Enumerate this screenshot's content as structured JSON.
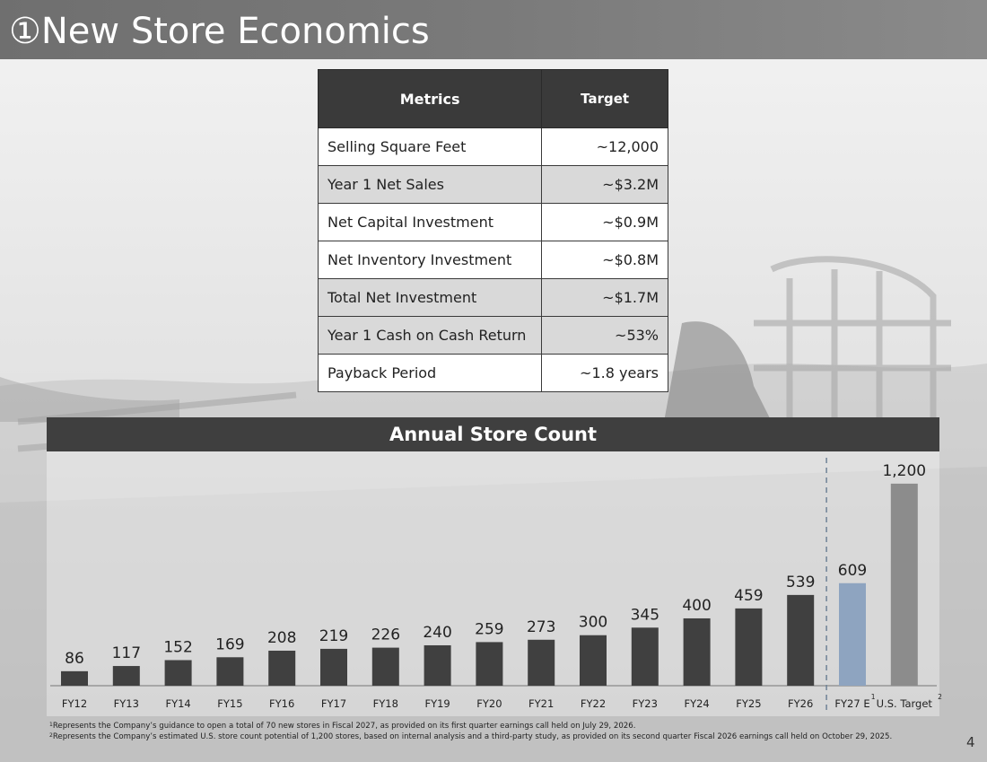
{
  "header": {
    "title": "①New Store Economics"
  },
  "metrics_table": {
    "headers": {
      "metric": "Metrics",
      "target": "Target"
    },
    "rows": [
      {
        "metric": "Selling Square Feet",
        "target": "~12,000"
      },
      {
        "metric": "Year 1 Net Sales",
        "target": "~$3.2M"
      },
      {
        "metric": "Net Capital Investment",
        "target": "~$0.9M"
      },
      {
        "metric": "Net Inventory Investment",
        "target": "~$0.8M"
      },
      {
        "metric": "Total Net Investment",
        "target": "~$1.7M"
      },
      {
        "metric": "Year 1 Cash on Cash Return",
        "target": "~53%"
      },
      {
        "metric": "Payback Period",
        "target": "~1.8 years"
      }
    ]
  },
  "chart_data": {
    "type": "bar",
    "title": "Annual Store Count",
    "categories": [
      "FY12",
      "FY13",
      "FY14",
      "FY15",
      "FY16",
      "FY17",
      "FY18",
      "FY19",
      "FY20",
      "FY21",
      "FY22",
      "FY23",
      "FY24",
      "FY25",
      "FY26",
      "FY27 E",
      "U.S. Target"
    ],
    "category_superscripts": [
      "",
      "",
      "",
      "",
      "",
      "",
      "",
      "",
      "",
      "",
      "",
      "",
      "",
      "",
      "",
      "1",
      "2"
    ],
    "values": [
      86,
      117,
      152,
      169,
      208,
      219,
      226,
      240,
      259,
      273,
      300,
      345,
      400,
      459,
      539,
      609,
      1200
    ],
    "data_labels": [
      "86",
      "117",
      "152",
      "169",
      "208",
      "219",
      "226",
      "240",
      "259",
      "273",
      "300",
      "345",
      "400",
      "459",
      "539",
      "609",
      "1,200"
    ],
    "ylim": [
      0,
      1300
    ],
    "xlabel": "",
    "ylabel": "",
    "grid": false,
    "colors": {
      "actual": "#404040",
      "estimate": "#8ea4c0",
      "target": "#8c8c8c",
      "divider": "#6e8296"
    }
  },
  "footnotes": [
    {
      "marker": "1",
      "text": "Represents the Company’s guidance to open a total of 70 new stores in Fiscal 2027, as provided on its first quarter earnings call held on July 29, 2026."
    },
    {
      "marker": "2",
      "text": "Represents the Company’s estimated U.S. store count potential of 1,200 stores, based on internal analysis and a third-party study, as provided on its second quarter Fiscal 2026 earnings call held on October 29, 2025."
    }
  ],
  "page_number": "4"
}
